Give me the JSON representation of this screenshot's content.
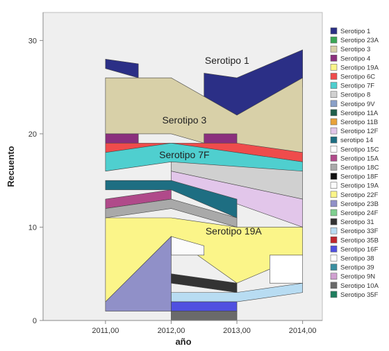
{
  "chart_data": {
    "type": "area",
    "xlabel": "año",
    "ylabel": "Recuento",
    "categories": [
      "2011,00",
      "2012,00",
      "2013,00",
      "2014,00"
    ],
    "x": [
      2011,
      2012,
      2013,
      2014
    ],
    "ylim": [
      0,
      33
    ],
    "yticks": [
      0,
      10,
      20,
      30
    ],
    "grid": false,
    "legend_position": "right",
    "plot_background": "#efefef",
    "series": [
      {
        "name": "Serotipo 1",
        "color": "#2b2f86",
        "segments": [
          {
            "x": [
              2011,
              2011.5
            ],
            "low": [
              27,
              26
            ],
            "high": [
              28,
              27.5
            ]
          },
          {
            "x": [
              2012.5,
              2013,
              2014
            ],
            "low": [
              24,
              22,
              25
            ],
            "high": [
              26.5,
              26,
              29
            ]
          }
        ]
      },
      {
        "name": "Serotipo 23A",
        "color": "#3aa655"
      },
      {
        "name": "Serotipo 3",
        "color": "#d8d0a8",
        "segments": [
          {
            "x": [
              2011,
              2012,
              2013,
              2014
            ],
            "low": [
              20,
              20,
              18,
              18
            ],
            "high": [
              26,
              26,
              22,
              26
            ]
          }
        ]
      },
      {
        "name": "Serotipo 4",
        "color": "#8b2f7d",
        "segments": [
          {
            "x": [
              2011,
              2011.5
            ],
            "low": [
              19,
              19
            ],
            "high": [
              20,
              20
            ]
          },
          {
            "x": [
              2012.5,
              2013
            ],
            "low": [
              19,
              19
            ],
            "high": [
              20,
              20
            ]
          }
        ]
      },
      {
        "name": "Serotipo 19A",
        "color": "#fbf589",
        "segments": [
          {
            "x": [
              2011,
              2012,
              2013,
              2014
            ],
            "low": [
              2,
              9,
              4,
              7
            ],
            "high": [
              11,
              11,
              10,
              10
            ]
          }
        ]
      },
      {
        "name": "Serotipo 6C",
        "color": "#ef4c4c",
        "segments": [
          {
            "x": [
              2011,
              2012,
              2013,
              2014
            ],
            "low": [
              18,
              18,
              18,
              17
            ],
            "high": [
              19,
              19,
              19,
              18
            ]
          }
        ]
      },
      {
        "name": "Serotipo 7F",
        "color": "#4fcfcf",
        "segments": [
          {
            "x": [
              2011,
              2012,
              2013,
              2014
            ],
            "low": [
              16,
              17,
              16,
              16
            ],
            "high": [
              18,
              19,
              18,
              17
            ]
          }
        ]
      },
      {
        "name": "Serotipo 8",
        "color": "#d0d0d0",
        "segments": [
          {
            "x": [
              2012,
              2014
            ],
            "low": [
              16,
              13
            ],
            "high": [
              17,
              16
            ]
          }
        ]
      },
      {
        "name": "Serotipo 9V",
        "color": "#8aa0c8"
      },
      {
        "name": "Serotipo 11A",
        "color": "#1f5e4a"
      },
      {
        "name": "Serotipo 11B",
        "color": "#e8a23a"
      },
      {
        "name": "Serotipo 12F",
        "color": "#e2c6ea",
        "segments": [
          {
            "x": [
              2012,
              2014
            ],
            "low": [
              15,
              10
            ],
            "high": [
              16,
              13
            ]
          }
        ]
      },
      {
        "name": "serotipo 14",
        "color": "#1e6e82",
        "segments": [
          {
            "x": [
              2011,
              2012,
              2013
            ],
            "low": [
              14,
              14,
              11
            ],
            "high": [
              15,
              15,
              13
            ]
          }
        ]
      },
      {
        "name": "Serotipo 15C",
        "color": "#ffffff"
      },
      {
        "name": "Serotipo 15A",
        "color": "#b04a8a",
        "segments": [
          {
            "x": [
              2011,
              2012
            ],
            "low": [
              12,
              13
            ],
            "high": [
              13,
              14
            ]
          }
        ]
      },
      {
        "name": "Serotipo 18C",
        "color": "#a9a9a9",
        "segments": [
          {
            "x": [
              2011,
              2012,
              2013
            ],
            "low": [
              11,
              12,
              10
            ],
            "high": [
              12,
              13,
              11
            ]
          }
        ]
      },
      {
        "name": "Serotipo 18F",
        "color": "#111111"
      },
      {
        "name": "Serotipo 19A",
        "color": "#fbfbfb",
        "segments": [
          {
            "x": [
              2012,
              2012.5
            ],
            "low": [
              7,
              7
            ],
            "high": [
              9,
              8
            ]
          }
        ]
      },
      {
        "name": "Serotipo 22F",
        "color": "#fbf589"
      },
      {
        "name": "Serotipo 23B",
        "color": "#9090c8",
        "segments": [
          {
            "x": [
              2011,
              2012
            ],
            "low": [
              1,
              1
            ],
            "high": [
              2,
              9
            ]
          }
        ]
      },
      {
        "name": "Serotipo 24F",
        "color": "#7fcf8f"
      },
      {
        "name": "Serotipo 31",
        "color": "#333333",
        "segments": [
          {
            "x": [
              2012,
              2013
            ],
            "low": [
              4,
              3
            ],
            "high": [
              5,
              4
            ]
          }
        ]
      },
      {
        "name": "Serotipo 33F",
        "color": "#b8dcf2",
        "segments": [
          {
            "x": [
              2012,
              2013,
              2014
            ],
            "low": [
              2,
              2,
              3
            ],
            "high": [
              3,
              3,
              4
            ]
          }
        ]
      },
      {
        "name": "Serotipo 35B",
        "color": "#c0272d"
      },
      {
        "name": "Serotipo 16F",
        "color": "#5050e0",
        "segments": [
          {
            "x": [
              2012,
              2013
            ],
            "low": [
              1,
              1
            ],
            "high": [
              2,
              2
            ]
          }
        ]
      },
      {
        "name": "Serotipo 38",
        "color": "#ffffff",
        "segments": [
          {
            "x": [
              2013.5,
              2014
            ],
            "low": [
              4,
              4
            ],
            "high": [
              7,
              7
            ]
          }
        ]
      },
      {
        "name": "Serotipo 39",
        "color": "#3a8fa0"
      },
      {
        "name": "Serotipo 9N",
        "color": "#d0a0d0"
      },
      {
        "name": "Serotipo 10A",
        "color": "#6a6a6a",
        "segments": [
          {
            "x": [
              2012,
              2013
            ],
            "low": [
              0,
              0
            ],
            "high": [
              1,
              1
            ]
          }
        ]
      },
      {
        "name": "Serotipo 35F",
        "color": "#1f7e5e"
      }
    ],
    "annotations": [
      {
        "text": "Serotipo 1",
        "x": 2012.85,
        "y": 27.5
      },
      {
        "text": "Serotipo 3",
        "x": 2012.2,
        "y": 21.1
      },
      {
        "text": "Serotipo 7F",
        "x": 2012.2,
        "y": 17.4
      },
      {
        "text": "Serotipo 19A",
        "x": 2012.95,
        "y": 9.2
      }
    ]
  }
}
